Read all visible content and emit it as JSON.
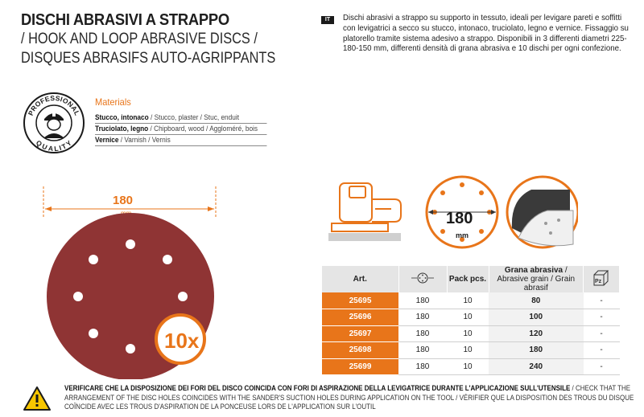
{
  "title": {
    "it": "DISCHI ABRASIVI A STRAPPO",
    "en": "/ HOOK AND LOOP ABRASIVE DISCS /",
    "fr": "DISQUES ABRASIFS AUTO-AGRIPPANTS"
  },
  "description": {
    "lang_badge": "IT",
    "text": "Dischi abrasivi a strappo su supporto in tessuto, ideali per levigare pareti e soffitti con levigatrici a secco su stucco, intonaco, truciolato, legno e vernice. Fissaggio su platorello tramite sistema adesivo a strappo. Disponibili in 3 differenti diametri 225-180-150 mm, differenti densità di grana abrasiva e 10 dischi per ogni confezione."
  },
  "seal": {
    "top_text": "PROFESSIONAL",
    "bottom_text": "QUALITY"
  },
  "materials": {
    "title": "Materials",
    "rows": [
      {
        "bold": "Stucco, intonaco",
        "rest": " / Stucco, plaster / Stuc, enduit"
      },
      {
        "bold": "Truciolato, legno",
        "rest": " / Chipboard, wood / Aggloméré, bois"
      },
      {
        "bold": "Vernice",
        "rest": " / Varnish / Vernis"
      }
    ]
  },
  "disc": {
    "diameter": "180",
    "unit": "mm",
    "pack_badge": "10x",
    "color": "#8f3434"
  },
  "icons": {
    "sander_icon": "sander-icon",
    "diameter_label": "180",
    "diameter_unit": "mm",
    "hook_icon": "hook-loop-icon"
  },
  "table": {
    "headers": {
      "art": "Art.",
      "holes_icon": "holes-icon",
      "pack": "Pack pcs.",
      "grain_bold": "Grana abrasiva",
      "grain_rest": " / Abrasive grain / Grain abrasif",
      "pz_icon": "box-pz-icon",
      "pz_label": "Pz"
    },
    "rows": [
      {
        "art": "25695",
        "diam": "180",
        "pack": "10",
        "grain": "80",
        "box": "-"
      },
      {
        "art": "25696",
        "diam": "180",
        "pack": "10",
        "grain": "100",
        "box": "-"
      },
      {
        "art": "25697",
        "diam": "180",
        "pack": "10",
        "grain": "120",
        "box": "-"
      },
      {
        "art": "25698",
        "diam": "180",
        "pack": "10",
        "grain": "180",
        "box": "-"
      },
      {
        "art": "25699",
        "diam": "180",
        "pack": "10",
        "grain": "240",
        "box": "-"
      }
    ]
  },
  "warning": {
    "bold": "VERIFICARE CHE LA DISPOSIZIONE DEI FORI DEL DISCO COINCIDA CON FORI DI ASPIRAZIONE DELLA LEVIGATRICE DURANTE L'APPLICAZIONE SULL'UTENSILE",
    "rest": " / CHECK THAT THE ARRANGEMENT OF THE DISC HOLES COINCIDES WITH THE SANDER'S SUCTION HOLES DURING APPLICATION ON THE TOOL / VÉRIFIER QUE LA DISPOSITION DES TROUS DU DISQUE COÏNCIDE AVEC LES TROUS D'ASPIRATION DE LA PONCEUSE LORS DE L'APPLICATION SUR L'OUTIL"
  },
  "colors": {
    "accent": "#e8751a",
    "disc": "#8f3434",
    "header_bg": "#e5e5e5"
  }
}
